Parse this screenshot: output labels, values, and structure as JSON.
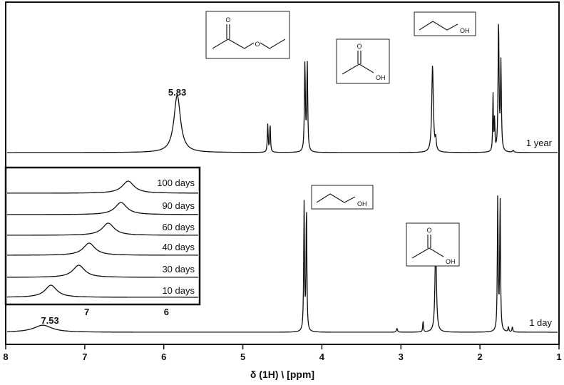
{
  "chart_data": {
    "type": "line",
    "xlabel": "δ  (1H)  \\ [ppm]",
    "x_ticks": [
      8,
      7,
      6,
      5,
      4,
      3,
      2,
      1
    ],
    "xlim": [
      8,
      1
    ],
    "x_reversed": true,
    "grid": false,
    "spectra": [
      {
        "name": "1 year",
        "peaks": [
          {
            "ppm": 5.83,
            "height": 0.62,
            "width": 0.05
          },
          {
            "ppm": 4.685,
            "height": 0.3,
            "width": 0.006
          },
          {
            "ppm": 4.655,
            "height": 0.3,
            "width": 0.006
          },
          {
            "ppm": 4.215,
            "height": 0.95,
            "width": 0.007
          },
          {
            "ppm": 4.185,
            "height": 0.95,
            "width": 0.007
          },
          {
            "ppm": 2.6,
            "height": 0.94,
            "width": 0.012
          },
          {
            "ppm": 2.56,
            "height": 0.12,
            "width": 0.008
          },
          {
            "ppm": 1.835,
            "height": 0.62,
            "width": 0.005
          },
          {
            "ppm": 1.815,
            "height": 0.35,
            "width": 0.005
          },
          {
            "ppm": 1.765,
            "height": 1.42,
            "width": 0.007
          },
          {
            "ppm": 1.735,
            "height": 0.95,
            "width": 0.007
          },
          {
            "ppm": 1.58,
            "height": 0.02,
            "width": 0.01
          }
        ],
        "annotations": [
          {
            "text": "5.83",
            "ppm": 5.83
          }
        ]
      },
      {
        "name": "1 day",
        "peaks": [
          {
            "ppm": 7.53,
            "height": 0.055,
            "width": 0.14
          },
          {
            "ppm": 4.225,
            "height": 1.0,
            "width": 0.006
          },
          {
            "ppm": 4.195,
            "height": 0.98,
            "width": 0.006
          },
          {
            "ppm": 2.56,
            "height": 0.72,
            "width": 0.011
          },
          {
            "ppm": 2.72,
            "height": 0.09,
            "width": 0.005
          },
          {
            "ppm": 3.05,
            "height": 0.03,
            "width": 0.008
          },
          {
            "ppm": 1.775,
            "height": 1.05,
            "width": 0.006
          },
          {
            "ppm": 1.745,
            "height": 1.03,
            "width": 0.006
          },
          {
            "ppm": 1.64,
            "height": 0.04,
            "width": 0.006
          },
          {
            "ppm": 1.59,
            "height": 0.04,
            "width": 0.006
          }
        ],
        "annotations": [
          {
            "text": "7.53",
            "ppm": 7.53
          }
        ]
      }
    ],
    "inset": {
      "x_ticks": [
        7,
        6
      ],
      "xlim": [
        8,
        5.6
      ],
      "series": [
        {
          "name": "100 days",
          "peak_ppm": 6.48
        },
        {
          "name": "90 days",
          "peak_ppm": 6.57
        },
        {
          "name": "60 days",
          "peak_ppm": 6.73
        },
        {
          "name": "40 days",
          "peak_ppm": 6.97
        },
        {
          "name": "30 days",
          "peak_ppm": 7.1
        },
        {
          "name": "10 days",
          "peak_ppm": 7.45
        }
      ]
    },
    "structure_labels": [
      {
        "molecule": "ethyl acetate",
        "atom_labels": [
          "O",
          "O"
        ]
      },
      {
        "molecule": "ethanol",
        "atom_labels": [
          "OH"
        ]
      },
      {
        "molecule": "acetic acid",
        "atom_labels": [
          "O",
          "OH"
        ]
      },
      {
        "molecule": "ethanol",
        "atom_labels": [
          "OH"
        ]
      },
      {
        "molecule": "acetic acid",
        "atom_labels": [
          "O",
          "OH"
        ]
      }
    ]
  }
}
